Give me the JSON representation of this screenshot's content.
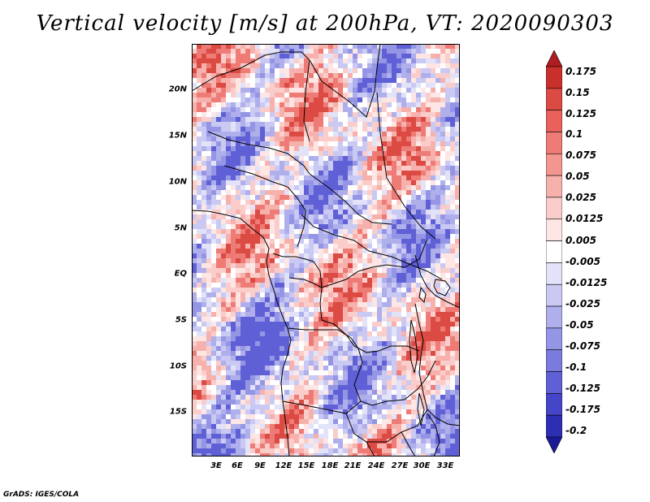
{
  "title": "Vertical velocity [m/s] at 200hPa, VT: 2020090303",
  "credit": "GrADS: IGES/COLA",
  "map": {
    "lat_labels": [
      "20N",
      "15N",
      "10N",
      "5N",
      "EQ",
      "5S",
      "10S",
      "15S"
    ],
    "lon_labels": [
      "3E",
      "6E",
      "9E",
      "12E",
      "15E",
      "18E",
      "21E",
      "24E",
      "27E",
      "30E",
      "33E"
    ]
  },
  "colorbar": {
    "labels": [
      "0.175",
      "0.15",
      "0.125",
      "0.1",
      "0.075",
      "0.05",
      "0.025",
      "0.0125",
      "0.005",
      "-0.005",
      "-0.0125",
      "-0.025",
      "-0.05",
      "-0.075",
      "-0.1",
      "-0.125",
      "-0.175",
      "-0.2"
    ],
    "colors": [
      "#b01c20",
      "#c9302c",
      "#dc4a44",
      "#e8625b",
      "#ee7b75",
      "#f39690",
      "#f7b1ad",
      "#fbcdca",
      "#fde6e4",
      "#ffffff",
      "#e2e2f9",
      "#c9c9f3",
      "#afafec",
      "#9595e6",
      "#7b7bdf",
      "#6060d6",
      "#4545c9",
      "#2e2eb4",
      "#1a1a99"
    ]
  }
}
